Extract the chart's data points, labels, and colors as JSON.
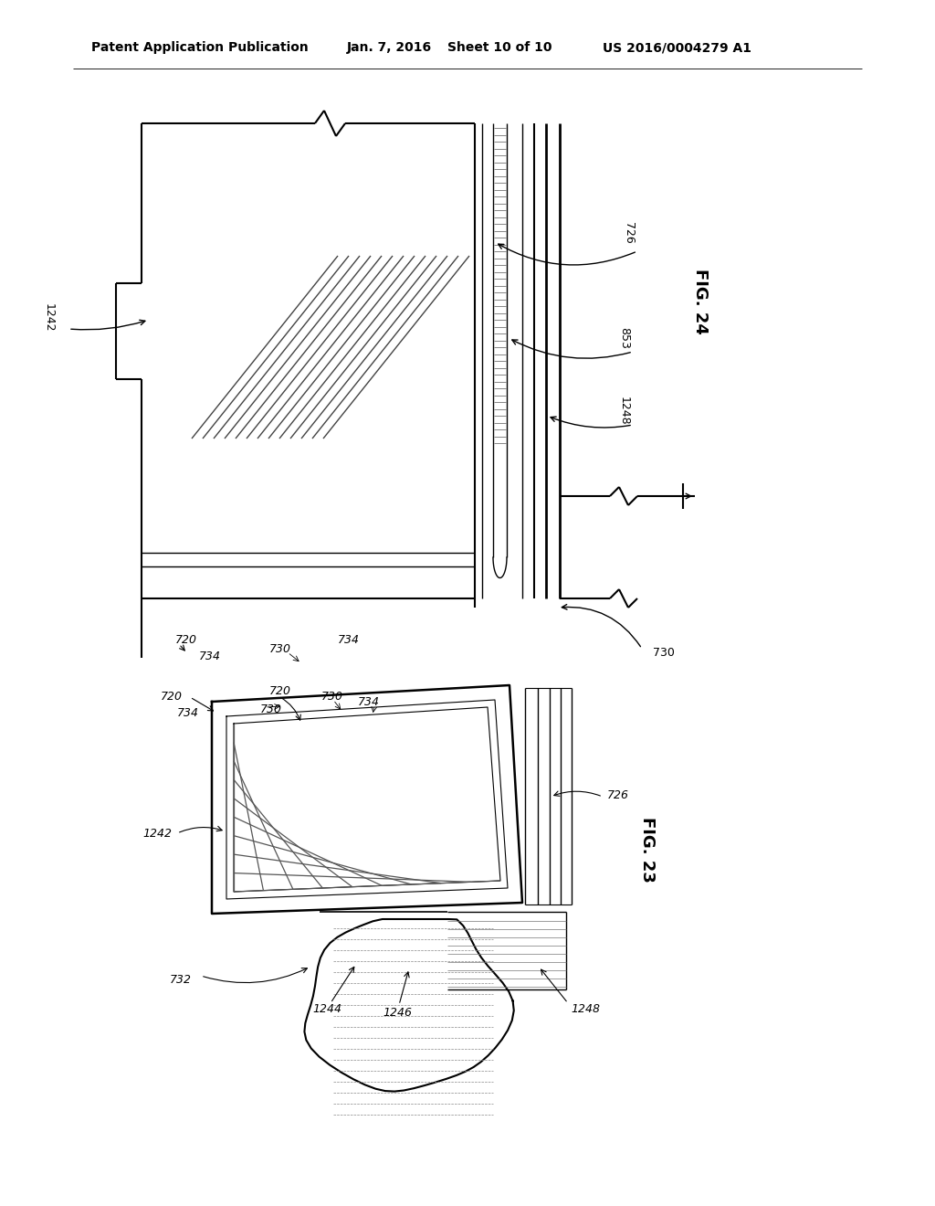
{
  "bg_color": "#ffffff",
  "header_text": "Patent Application Publication",
  "header_date": "Jan. 7, 2016",
  "header_sheet": "Sheet 10 of 10",
  "header_patent": "US 2016/0004279 A1",
  "fig24_label": "FIG. 24",
  "fig23_label": "FIG. 23",
  "line_color": "#000000",
  "gray": "#666666"
}
